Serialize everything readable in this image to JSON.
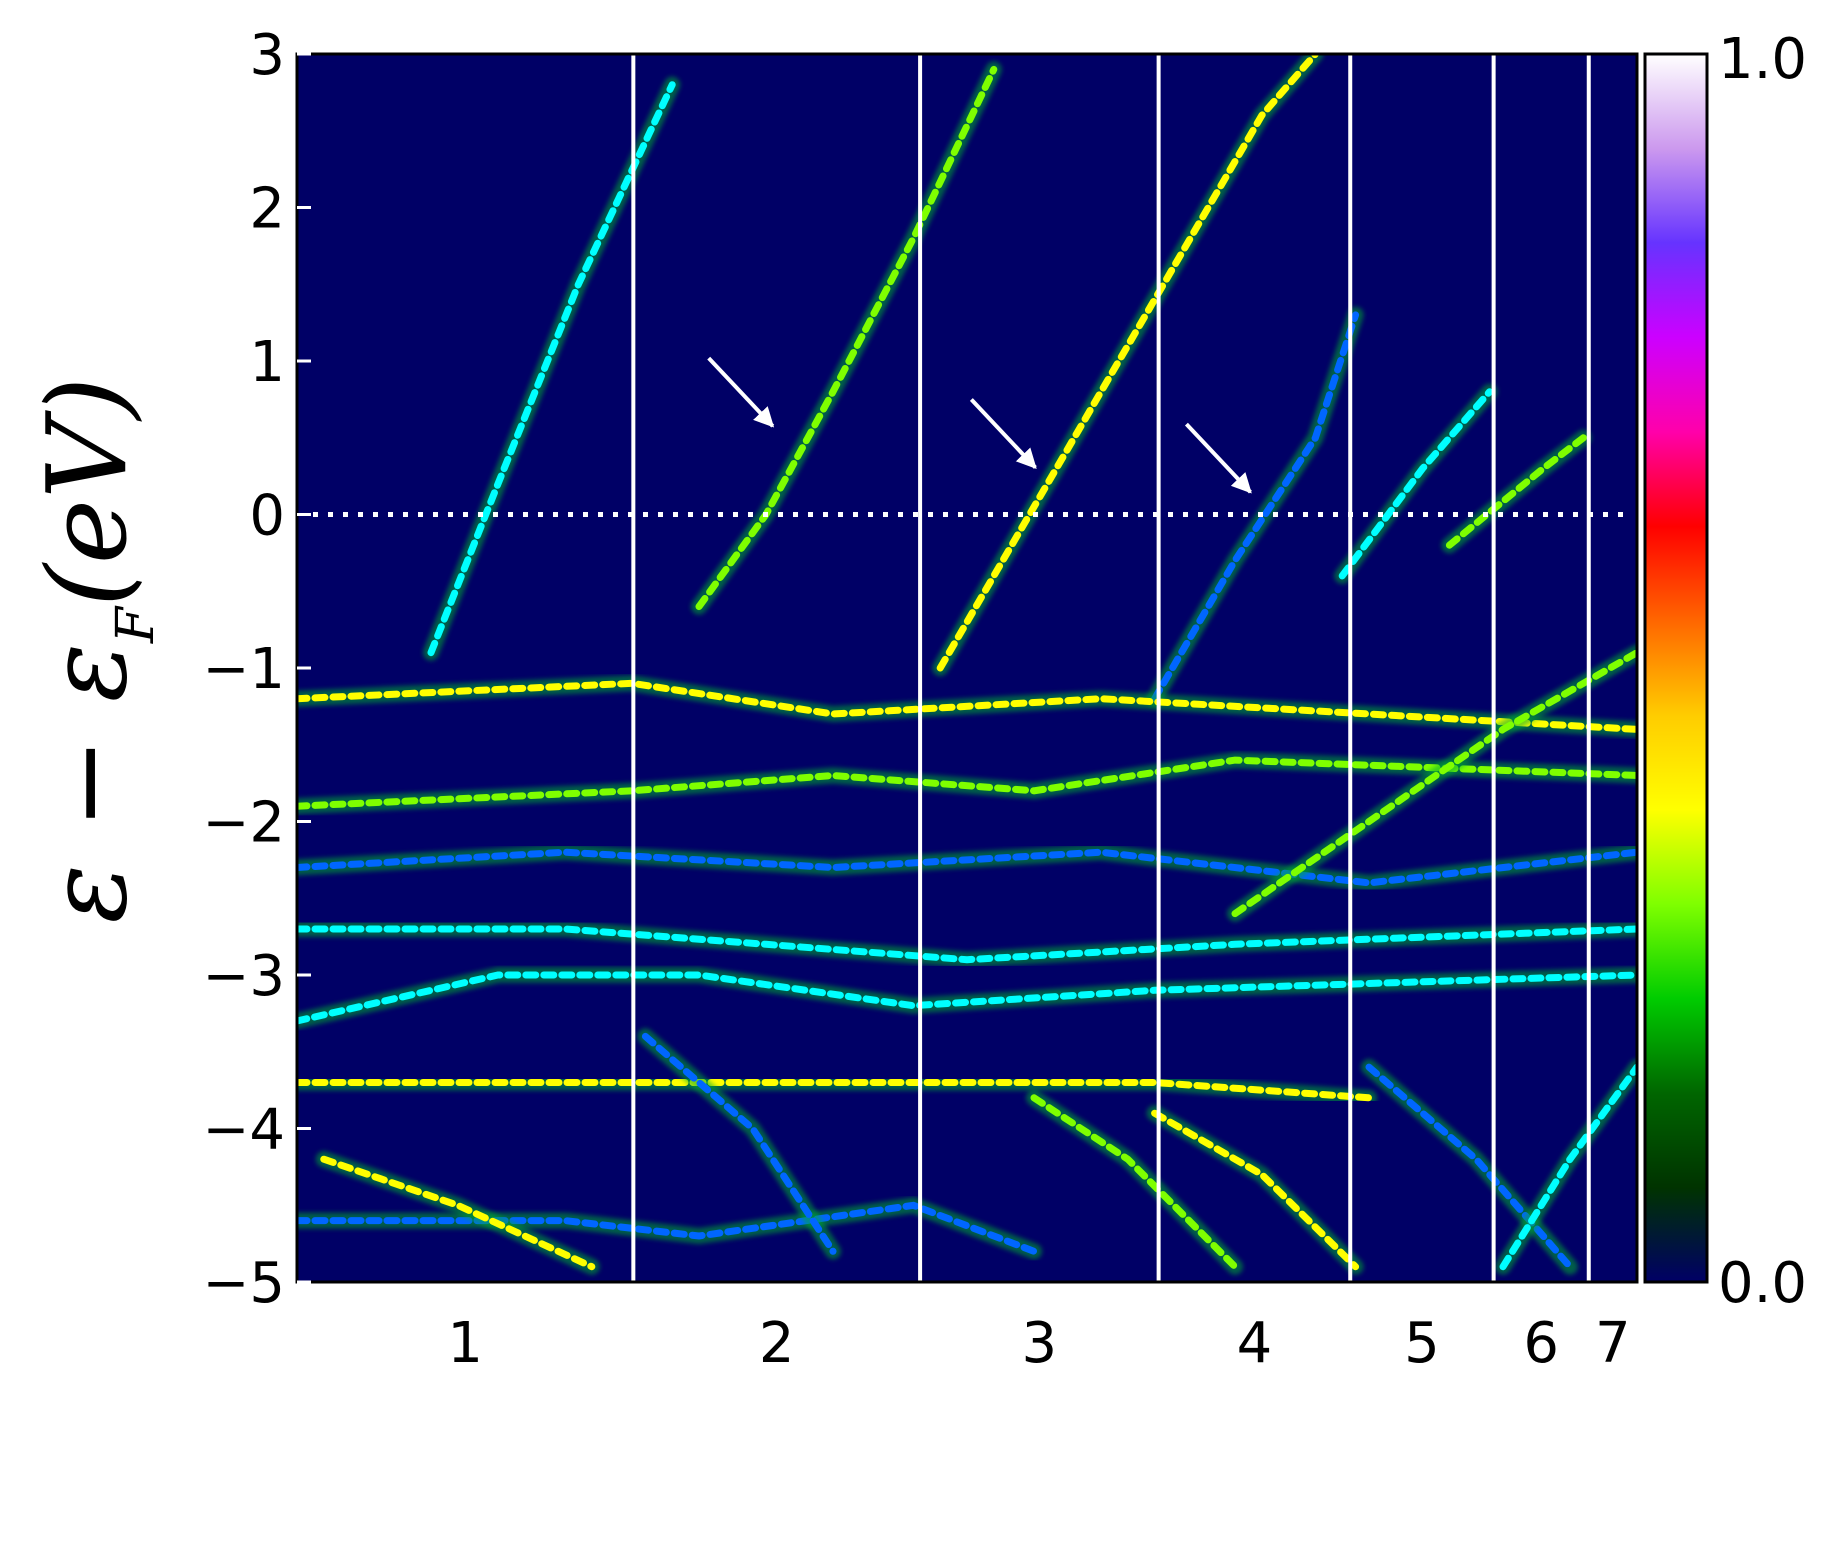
{
  "chart_data": {
    "type": "heatmap",
    "title": "",
    "xlabel": "",
    "ylabel": {
      "main": "ε − ε",
      "subscript": "F",
      "unit": "(eV)"
    },
    "ylim": [
      -5,
      3
    ],
    "yticks": [
      3,
      2,
      1,
      0,
      -1,
      -2,
      -3,
      -4,
      -5
    ],
    "ytick_labels": [
      "3",
      "2",
      "1",
      "0",
      "−1",
      "−2",
      "−3",
      "−4",
      "−5"
    ],
    "x_segments": {
      "labels": [
        "1",
        "2",
        "3",
        "4",
        "5",
        "6",
        "7"
      ],
      "boundaries": [
        0,
        0.251,
        0.465,
        0.643,
        0.786,
        0.893,
        0.964,
        1.0
      ]
    },
    "fermi_level": 0,
    "colorbar": {
      "range": [
        0.0,
        1.0
      ],
      "min_label": "0.0",
      "max_label": "1.0",
      "colors": [
        "#000066",
        "#003300",
        "#006600",
        "#00cc00",
        "#7fff00",
        "#ffff00",
        "#ffcc00",
        "#ff6600",
        "#ff0000",
        "#ff00aa",
        "#cc00ff",
        "#6633ff",
        "#cc99ee",
        "#ffffff"
      ]
    },
    "background_color": "#000066",
    "band_colors": [
      "#00ffff",
      "#7fff00",
      "#ffff00",
      "#0066ff"
    ],
    "arrows": [
      {
        "segment": "2",
        "energy": 0.55
      },
      {
        "segment": "3",
        "energy": 0.28
      },
      {
        "segment": "4",
        "energy": 0.12
      }
    ],
    "bands": [
      {
        "points": [
          [
            0.1,
            -0.9
          ],
          [
            0.15,
            0.2
          ],
          [
            0.21,
            1.5
          ],
          [
            0.28,
            2.8
          ]
        ]
      },
      {
        "points": [
          [
            0.3,
            -0.6
          ],
          [
            0.35,
            0.0
          ],
          [
            0.4,
            0.8
          ],
          [
            0.46,
            1.8
          ],
          [
            0.52,
            2.9
          ]
        ]
      },
      {
        "points": [
          [
            0.48,
            -1.0
          ],
          [
            0.54,
            -0.1
          ],
          [
            0.6,
            0.8
          ],
          [
            0.66,
            1.7
          ],
          [
            0.72,
            2.6
          ],
          [
            0.76,
            3.0
          ]
        ]
      },
      {
        "points": [
          [
            0.64,
            -1.2
          ],
          [
            0.7,
            -0.3
          ],
          [
            0.76,
            0.5
          ],
          [
            0.79,
            1.3
          ]
        ]
      },
      {
        "points": [
          [
            0.78,
            -0.4
          ],
          [
            0.84,
            0.3
          ],
          [
            0.89,
            0.8
          ]
        ]
      },
      {
        "points": [
          [
            0.86,
            -0.2
          ],
          [
            0.93,
            0.3
          ],
          [
            0.96,
            0.5
          ]
        ]
      },
      {
        "points": [
          [
            0.0,
            -3.7
          ],
          [
            0.25,
            -3.7
          ],
          [
            0.46,
            -3.7
          ],
          [
            0.64,
            -3.7
          ],
          [
            0.8,
            -3.8
          ]
        ]
      },
      {
        "points": [
          [
            0.0,
            -4.6
          ],
          [
            0.2,
            -4.6
          ],
          [
            0.3,
            -4.7
          ],
          [
            0.46,
            -4.5
          ],
          [
            0.55,
            -4.8
          ]
        ]
      },
      {
        "points": [
          [
            0.0,
            -2.7
          ],
          [
            0.2,
            -2.7
          ],
          [
            0.35,
            -2.8
          ],
          [
            0.5,
            -2.9
          ],
          [
            0.7,
            -2.8
          ],
          [
            1.0,
            -2.7
          ]
        ]
      },
      {
        "points": [
          [
            0.0,
            -1.9
          ],
          [
            0.25,
            -1.8
          ],
          [
            0.4,
            -1.7
          ],
          [
            0.55,
            -1.8
          ],
          [
            0.7,
            -1.6
          ],
          [
            1.0,
            -1.7
          ]
        ]
      },
      {
        "points": [
          [
            0.0,
            -1.2
          ],
          [
            0.25,
            -1.1
          ],
          [
            0.4,
            -1.3
          ],
          [
            0.6,
            -1.2
          ],
          [
            0.8,
            -1.3
          ],
          [
            1.0,
            -1.4
          ]
        ]
      },
      {
        "points": [
          [
            0.0,
            -2.3
          ],
          [
            0.2,
            -2.2
          ],
          [
            0.4,
            -2.3
          ],
          [
            0.6,
            -2.2
          ],
          [
            0.8,
            -2.4
          ],
          [
            1.0,
            -2.2
          ]
        ]
      },
      {
        "points": [
          [
            0.0,
            -3.3
          ],
          [
            0.15,
            -3.0
          ],
          [
            0.3,
            -3.0
          ],
          [
            0.46,
            -3.2
          ],
          [
            0.64,
            -3.1
          ],
          [
            1.0,
            -3.0
          ]
        ]
      },
      {
        "points": [
          [
            0.55,
            -3.8
          ],
          [
            0.62,
            -4.2
          ],
          [
            0.7,
            -4.9
          ]
        ]
      },
      {
        "points": [
          [
            0.64,
            -3.9
          ],
          [
            0.72,
            -4.3
          ],
          [
            0.79,
            -4.9
          ]
        ]
      },
      {
        "points": [
          [
            0.8,
            -3.6
          ],
          [
            0.88,
            -4.2
          ],
          [
            0.95,
            -4.9
          ]
        ]
      },
      {
        "points": [
          [
            0.9,
            -4.9
          ],
          [
            0.95,
            -4.2
          ],
          [
            1.0,
            -3.6
          ]
        ]
      },
      {
        "points": [
          [
            0.7,
            -2.6
          ],
          [
            0.8,
            -2.0
          ],
          [
            0.9,
            -1.4
          ],
          [
            1.0,
            -0.9
          ]
        ]
      },
      {
        "points": [
          [
            0.02,
            -4.2
          ],
          [
            0.12,
            -4.5
          ],
          [
            0.22,
            -4.9
          ]
        ]
      },
      {
        "points": [
          [
            0.26,
            -3.4
          ],
          [
            0.34,
            -4.0
          ],
          [
            0.4,
            -4.8
          ]
        ]
      }
    ]
  }
}
